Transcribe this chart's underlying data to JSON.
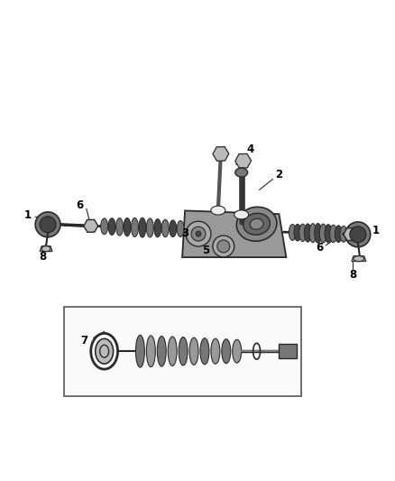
{
  "bg_color": "#ffffff",
  "lc": "#2a2a2a",
  "dark_gray": "#444444",
  "mid_gray": "#777777",
  "light_gray": "#bbbbbb",
  "very_light": "#eeeeee",
  "label_color": "#000000",
  "labels": {
    "1_left": "1",
    "6_left": "6",
    "8_left": "8",
    "4": "4",
    "2": "2",
    "3": "3",
    "5": "5",
    "6_right": "6",
    "1_right": "1",
    "8_right": "8",
    "7": "7"
  },
  "figsize": [
    4.38,
    5.33
  ],
  "dpi": 100
}
